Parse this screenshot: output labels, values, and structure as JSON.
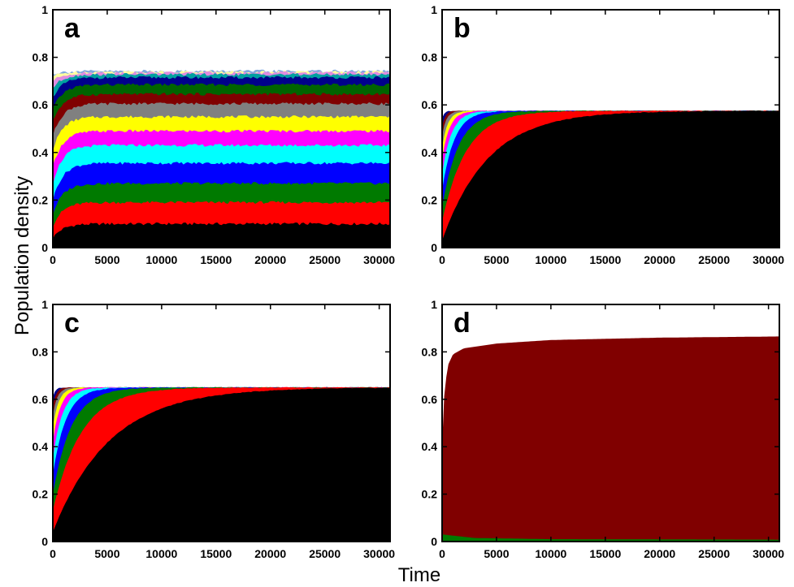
{
  "figure": {
    "ylabel": "Population density",
    "xlabel": "Time"
  },
  "colors": {
    "black": "#000000",
    "red": "#ff0000",
    "green": "#007a00",
    "blue": "#0000ff",
    "cyan": "#00ffff",
    "magenta": "#ff00ff",
    "yellow": "#ffff00",
    "gray": "#808080",
    "maroon": "#800000",
    "dark_green": "#006400",
    "navy": "#00008b",
    "light_blue": "#7fa8e0",
    "pink": "#e08ce0",
    "light_yellow": "#ffffa0"
  },
  "chart_data": [
    {
      "panel": "a",
      "type": "area",
      "stacked": true,
      "xlim": [
        0,
        31000
      ],
      "ylim": [
        0,
        1
      ],
      "xticks": [
        "0",
        "5000",
        "10000",
        "15000",
        "20000",
        "25000",
        "30000"
      ],
      "yticks": [
        "0",
        "0.2",
        "0.4",
        "0.6",
        "0.8",
        "1"
      ],
      "bands": [
        {
          "color": "#000000",
          "top": 0.1,
          "rise": 0.04
        },
        {
          "color": "#ff0000",
          "top": 0.19,
          "rise": 0.09
        },
        {
          "color": "#007a00",
          "top": 0.27,
          "rise": 0.14
        },
        {
          "color": "#0000ff",
          "top": 0.355,
          "rise": 0.2
        },
        {
          "color": "#00ffff",
          "top": 0.43,
          "rise": 0.27
        },
        {
          "color": "#ff00ff",
          "top": 0.49,
          "rise": 0.34
        },
        {
          "color": "#ffff00",
          "top": 0.55,
          "rise": 0.41
        },
        {
          "color": "#808080",
          "top": 0.605,
          "rise": 0.47
        },
        {
          "color": "#800000",
          "top": 0.645,
          "rise": 0.53
        },
        {
          "color": "#006400",
          "top": 0.685,
          "rise": 0.58
        },
        {
          "color": "#00008b",
          "top": 0.715,
          "rise": 0.63
        },
        {
          "color": "#00a0a0",
          "top": 0.728,
          "rise": 0.67
        },
        {
          "color": "#e08ce0",
          "top": 0.735,
          "rise": 0.7
        },
        {
          "color": "#ffffa0",
          "top": 0.739,
          "rise": 0.72
        },
        {
          "color": "#7fa8e0",
          "top": 0.742,
          "rise": 0.73
        }
      ]
    },
    {
      "panel": "b",
      "type": "area",
      "stacked": true,
      "xlim": [
        0,
        31000
      ],
      "ylim": [
        0,
        1
      ],
      "xticks": [
        "0",
        "5000",
        "10000",
        "15000",
        "20000",
        "25000",
        "30000"
      ],
      "yticks": [
        "0",
        "0.2",
        "0.4",
        "0.6",
        "0.8",
        "1"
      ],
      "total": 0.575,
      "bands": [
        {
          "color": "#000000",
          "start": 0.03,
          "tau": 4200
        },
        {
          "color": "#ff0000",
          "start": 0.11,
          "tau": 2200
        },
        {
          "color": "#007a00",
          "start": 0.17,
          "tau": 1500
        },
        {
          "color": "#0000ff",
          "start": 0.24,
          "tau": 1100
        },
        {
          "color": "#00ffff",
          "start": 0.31,
          "tau": 850
        },
        {
          "color": "#ff00ff",
          "start": 0.37,
          "tau": 650
        },
        {
          "color": "#ffff00",
          "start": 0.42,
          "tau": 500
        },
        {
          "color": "#808080",
          "start": 0.47,
          "tau": 380
        },
        {
          "color": "#800000",
          "start": 0.51,
          "tau": 280
        },
        {
          "color": "#00008b",
          "start": 0.545,
          "tau": 200
        }
      ]
    },
    {
      "panel": "c",
      "type": "area",
      "stacked": true,
      "xlim": [
        0,
        31000
      ],
      "ylim": [
        0,
        1
      ],
      "xticks": [
        "0",
        "5000",
        "10000",
        "15000",
        "20000",
        "25000",
        "30000"
      ],
      "yticks": [
        "0",
        "0.2",
        "0.4",
        "0.6",
        "0.8",
        "1"
      ],
      "total": 0.65,
      "bands": [
        {
          "color": "#000000",
          "start": 0.04,
          "tau": 5200
        },
        {
          "color": "#ff0000",
          "start": 0.13,
          "tau": 2600
        },
        {
          "color": "#007a00",
          "start": 0.2,
          "tau": 1700
        },
        {
          "color": "#0000ff",
          "start": 0.28,
          "tau": 1200
        },
        {
          "color": "#00ffff",
          "start": 0.35,
          "tau": 900
        },
        {
          "color": "#ff00ff",
          "start": 0.42,
          "tau": 680
        },
        {
          "color": "#ffff00",
          "start": 0.48,
          "tau": 520
        },
        {
          "color": "#808080",
          "start": 0.53,
          "tau": 400
        },
        {
          "color": "#800000",
          "start": 0.575,
          "tau": 300
        },
        {
          "color": "#00008b",
          "start": 0.61,
          "tau": 220
        }
      ]
    },
    {
      "panel": "d",
      "type": "area",
      "stacked": true,
      "xlim": [
        0,
        31000
      ],
      "ylim": [
        0,
        1
      ],
      "xticks": [
        "0",
        "5000",
        "10000",
        "15000",
        "20000",
        "25000",
        "30000"
      ],
      "yticks": [
        "0",
        "0.2",
        "0.4",
        "0.6",
        "0.8",
        "1"
      ],
      "series": [
        {
          "color": "#007a00",
          "values": [
            [
              0,
              0.03
            ],
            [
              1000,
              0.025
            ],
            [
              3000,
              0.015
            ],
            [
              10000,
              0.01
            ],
            [
              31000,
              0.008
            ]
          ]
        },
        {
          "color": "#800000",
          "values": [
            [
              0,
              0.4
            ],
            [
              200,
              0.62
            ],
            [
              500,
              0.74
            ],
            [
              1000,
              0.79
            ],
            [
              2000,
              0.815
            ],
            [
              5000,
              0.835
            ],
            [
              10000,
              0.85
            ],
            [
              20000,
              0.86
            ],
            [
              31000,
              0.865
            ]
          ]
        }
      ]
    }
  ]
}
